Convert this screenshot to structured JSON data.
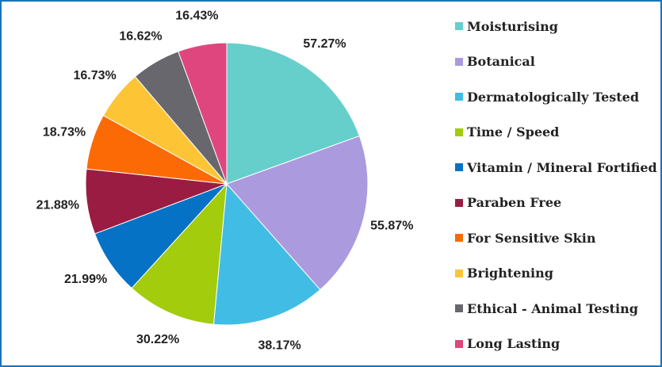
{
  "chart_data": {
    "type": "pie",
    "title": "",
    "legend_position": "right",
    "slices": [
      {
        "label": "Moisturising",
        "value": 57.27,
        "value_label": "57.27%",
        "color": "#66cfcc"
      },
      {
        "label": "Botanical",
        "value": 55.87,
        "value_label": "55.87%",
        "color": "#ab9ade"
      },
      {
        "label": "Dermatologically Tested",
        "value": 38.17,
        "value_label": "38.17%",
        "color": "#41bde5"
      },
      {
        "label": "Time / Speed",
        "value": 30.22,
        "value_label": "30.22%",
        "color": "#a2cc0c"
      },
      {
        "label": "Vitamin / Mineral Fortified",
        "value": 21.99,
        "value_label": "21.99%",
        "color": "#0572c6"
      },
      {
        "label": "Paraben Free",
        "value": 21.88,
        "value_label": "21.88%",
        "color": "#9b1c43"
      },
      {
        "label": "For Sensitive Skin",
        "value": 18.73,
        "value_label": "18.73%",
        "color": "#fb6a05"
      },
      {
        "label": "Brightening",
        "value": 16.73,
        "value_label": "16.73%",
        "color": "#fdc536"
      },
      {
        "label": "Ethical - Animal Testing",
        "value": 16.62,
        "value_label": "16.62%",
        "color": "#68676d"
      },
      {
        "label": "Long Lasting",
        "value": 16.43,
        "value_label": "16.43%",
        "color": "#e0467e"
      }
    ]
  }
}
